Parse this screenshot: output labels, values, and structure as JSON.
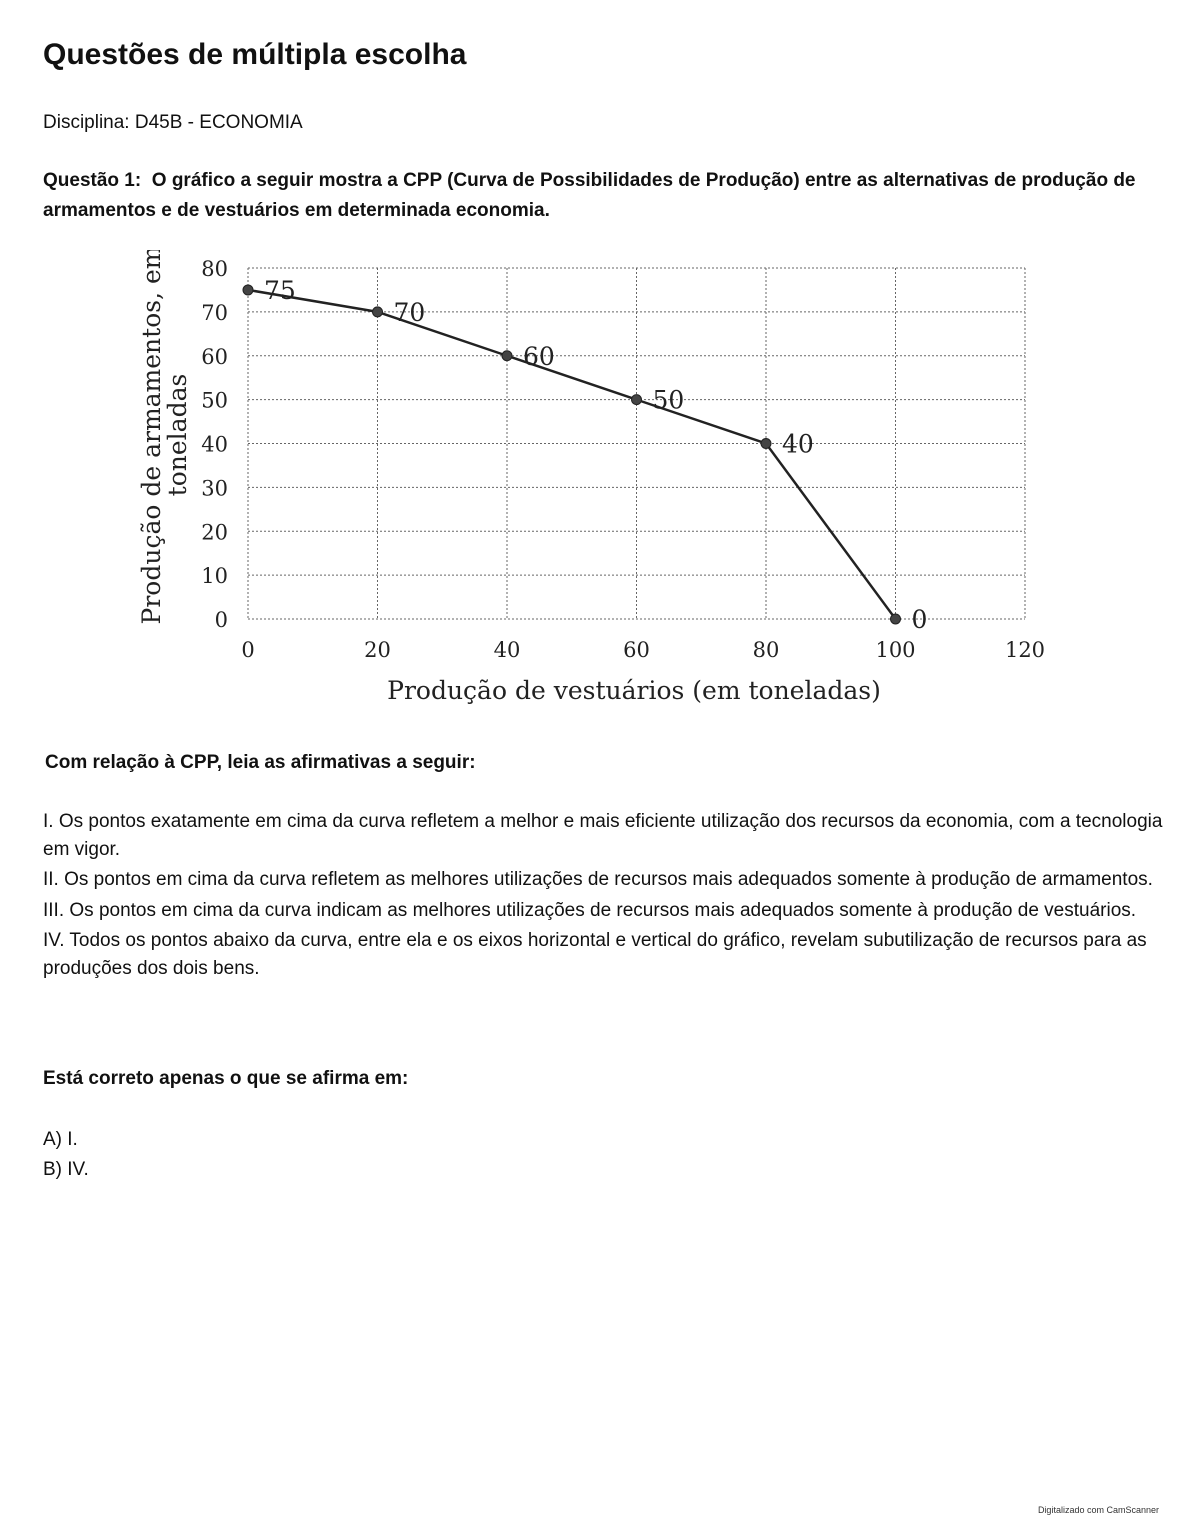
{
  "title": "Questões de múltipla escolha",
  "discipline": "Disciplina: D45B - ECONOMIA",
  "question": {
    "label": "Questão 1:",
    "text": "O gráfico a seguir mostra a CPP (Curva de Possibilidades de Produção) entre as alternativas de produção de armamentos e de vestuários em determinada economia."
  },
  "chart_data": {
    "type": "line",
    "x": [
      0,
      20,
      40,
      60,
      80,
      100
    ],
    "series": [
      {
        "values": [
          75,
          70,
          60,
          50,
          40,
          0
        ],
        "data_labels": [
          "75",
          "70",
          "60",
          "50",
          "40",
          "0"
        ]
      }
    ],
    "xlabel": "Produção de vestuários (em toneladas)",
    "ylabel": "Produção de armamentos, em toneladas",
    "ylabel_lines": [
      "Produção de armamentos, em",
      "toneladas"
    ],
    "xlim": [
      0,
      120
    ],
    "ylim": [
      0,
      80
    ],
    "xticks": [
      "0",
      "20",
      "40",
      "60",
      "80",
      "100",
      "120"
    ],
    "yticks": [
      "0",
      "10",
      "20",
      "30",
      "40",
      "50",
      "60",
      "70",
      "80"
    ],
    "grid": true,
    "line_color": "#222222"
  },
  "lead": "Com relação à CPP, leia as afirmativas a seguir:",
  "statements": [
    "I. Os pontos exatamente em cima da curva refletem a melhor e mais eficiente utilização dos recursos da economia, com a tecnologia em vigor.",
    "II. Os pontos em cima da curva refletem as melhores utilizações de recursos mais adequados somente à produção de armamentos.",
    "III. Os pontos em cima da curva indicam as melhores utilizações de recursos mais adequados somente à produção de vestuários.",
    "IV. Todos os pontos abaixo da curva, entre ela e os eixos horizontal e vertical do gráfico, revelam subutilização de recursos para as produções dos dois bens."
  ],
  "ask": "Está correto apenas o que se afirma em:",
  "options": [
    "A) I.",
    "B) IV."
  ],
  "watermark": "Digitalizado com CamScanner"
}
